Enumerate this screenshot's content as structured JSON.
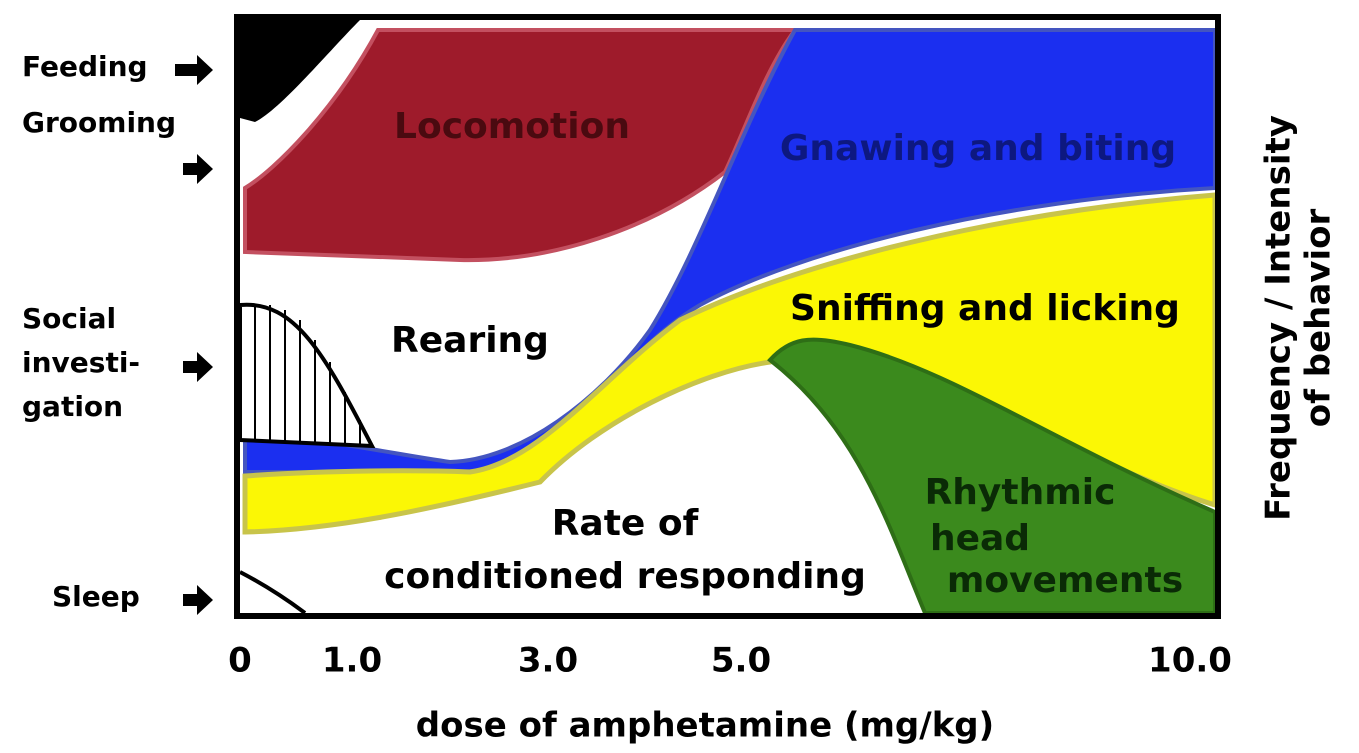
{
  "regions": [
    "Locomotion",
    "Gnawing and biting",
    "Rearing",
    "Sniffing and licking",
    "Rate of",
    "conditioned responding",
    "Rhythmic",
    "head",
    "movements"
  ],
  "left_labels": [
    "Feeding",
    "Grooming",
    "Social",
    "investi-",
    "gation",
    "Sleep"
  ],
  "x_ticks": [
    "0",
    "1.0",
    "3.0",
    "5.0",
    "10.0"
  ],
  "x_label": "dose of amphetamine (mg/kg)",
  "y_label": [
    "Frequency / Intensity",
    "of behavior"
  ]
}
